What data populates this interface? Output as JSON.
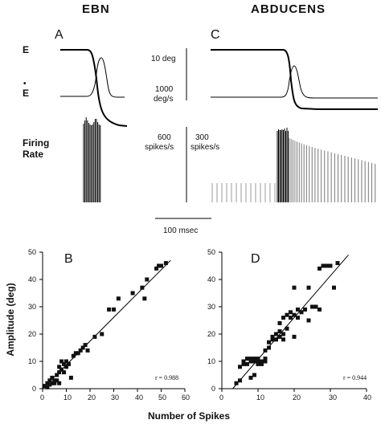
{
  "figure": {
    "header_left": "EBN",
    "header_right": "ABDUCENS",
    "panel_A": "A",
    "panel_B": "B",
    "panel_C": "C",
    "panel_D": "D",
    "row_labels": {
      "position": "E",
      "velocity": "E",
      "velocity_dot": "•",
      "firing_line1": "Firing",
      "firing_line2": "Rate"
    },
    "scale_bars": {
      "position": "10 deg",
      "velocity_line1": "1000",
      "velocity_line2": "deg/s",
      "ebn_rate_line1": "600",
      "ebn_rate_line2": "spikes/s",
      "abd_rate_line1": "300",
      "abd_rate_line2": "spikes/s",
      "time": "100 msec"
    },
    "y_axis_label": "Amplitude (deg)",
    "x_axis_label": "Number of Spikes"
  },
  "chart_data": [
    {
      "type": "scatter",
      "panel": "B",
      "title": "",
      "xlabel": "Number of Spikes",
      "ylabel": "Amplitude (deg)",
      "xlim": [
        0,
        60
      ],
      "ylim": [
        0,
        50
      ],
      "xticks": [
        "0",
        "10",
        "20",
        "30",
        "40",
        "50",
        "60"
      ],
      "yticks": [
        "0",
        "10",
        "20",
        "30",
        "40",
        "50"
      ],
      "annotation": "r = 0.988",
      "fit_line": [
        [
          0,
          0
        ],
        [
          54,
          47
        ]
      ],
      "points": [
        [
          1,
          1
        ],
        [
          2,
          2
        ],
        [
          2,
          0.5
        ],
        [
          3,
          3
        ],
        [
          3,
          1.5
        ],
        [
          4,
          2
        ],
        [
          4,
          4
        ],
        [
          5,
          3
        ],
        [
          5,
          2
        ],
        [
          6,
          5
        ],
        [
          6,
          3
        ],
        [
          7,
          6
        ],
        [
          7,
          2
        ],
        [
          7,
          8
        ],
        [
          8,
          7
        ],
        [
          8,
          10
        ],
        [
          9,
          9
        ],
        [
          9,
          6
        ],
        [
          10,
          10
        ],
        [
          10,
          8
        ],
        [
          11,
          9
        ],
        [
          12,
          4
        ],
        [
          13,
          12
        ],
        [
          14,
          13
        ],
        [
          15,
          13
        ],
        [
          16,
          14
        ],
        [
          17,
          15
        ],
        [
          18,
          16
        ],
        [
          19,
          14
        ],
        [
          22,
          19
        ],
        [
          25,
          20
        ],
        [
          28,
          29
        ],
        [
          30,
          29
        ],
        [
          32,
          33
        ],
        [
          38,
          35
        ],
        [
          42,
          37
        ],
        [
          43,
          33
        ],
        [
          44,
          40
        ],
        [
          48,
          44
        ],
        [
          49,
          45
        ],
        [
          50,
          45
        ],
        [
          52,
          46
        ]
      ]
    },
    {
      "type": "scatter",
      "panel": "D",
      "title": "",
      "xlabel": "Number of Spikes",
      "ylabel": "Amplitude (deg)",
      "xlim": [
        0,
        40
      ],
      "ylim": [
        0,
        50
      ],
      "xticks": [
        "0",
        "10",
        "20",
        "30",
        "40"
      ],
      "yticks": [
        "0",
        "10",
        "20",
        "30",
        "40",
        "50"
      ],
      "annotation": "r = 0.944",
      "fit_line": [
        [
          3,
          0
        ],
        [
          35,
          49
        ]
      ],
      "points": [
        [
          4,
          2
        ],
        [
          5,
          3
        ],
        [
          5,
          8
        ],
        [
          6,
          9
        ],
        [
          6,
          10
        ],
        [
          7,
          9
        ],
        [
          7,
          11
        ],
        [
          8,
          10
        ],
        [
          8,
          11
        ],
        [
          8,
          4
        ],
        [
          9,
          10
        ],
        [
          9,
          11
        ],
        [
          9,
          5
        ],
        [
          10,
          10
        ],
        [
          10,
          11
        ],
        [
          10,
          9
        ],
        [
          11,
          10
        ],
        [
          11,
          9
        ],
        [
          12,
          10
        ],
        [
          12,
          11
        ],
        [
          12,
          14
        ],
        [
          13,
          15
        ],
        [
          13,
          17
        ],
        [
          14,
          18
        ],
        [
          14,
          19
        ],
        [
          15,
          18
        ],
        [
          15,
          20
        ],
        [
          16,
          19
        ],
        [
          16,
          21
        ],
        [
          16,
          24
        ],
        [
          17,
          26
        ],
        [
          17,
          20
        ],
        [
          17,
          18
        ],
        [
          18,
          27
        ],
        [
          18,
          22
        ],
        [
          19,
          26
        ],
        [
          19,
          28
        ],
        [
          20,
          27
        ],
        [
          20,
          19
        ],
        [
          20,
          37
        ],
        [
          21,
          29
        ],
        [
          21,
          26
        ],
        [
          22,
          28
        ],
        [
          23,
          29
        ],
        [
          24,
          37
        ],
        [
          24,
          25
        ],
        [
          25,
          30
        ],
        [
          26,
          30
        ],
        [
          27,
          29
        ],
        [
          27,
          44
        ],
        [
          28,
          45
        ],
        [
          29,
          45
        ],
        [
          30,
          45
        ],
        [
          31,
          37
        ],
        [
          32,
          46
        ]
      ]
    }
  ]
}
